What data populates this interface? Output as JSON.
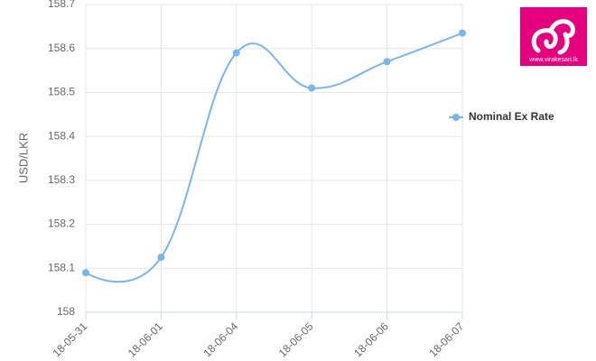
{
  "chart_data": {
    "type": "line",
    "y_label": "USD/LKR",
    "categories": [
      "18-05-31",
      "18-06-01",
      "18-06-04",
      "18-06-05",
      "18-06-06",
      "18-06-07"
    ],
    "series": [
      {
        "name": "Nominal Ex Rate",
        "color": "#7cb5ec",
        "values": [
          158.09,
          158.125,
          158.59,
          158.51,
          158.57,
          158.635
        ]
      }
    ],
    "ylim": [
      158,
      158.7
    ],
    "yticks": [
      158,
      158.1,
      158.2,
      158.3,
      158.4,
      158.5,
      158.6,
      158.7
    ],
    "grid": true,
    "smooth": true,
    "legend": "right"
  },
  "logo": {
    "url": "www.virakesari.lk"
  }
}
